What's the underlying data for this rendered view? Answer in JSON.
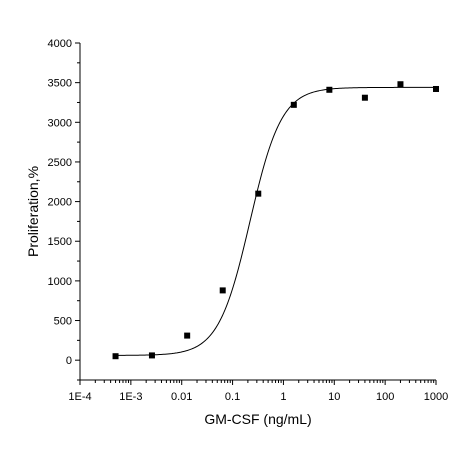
{
  "chart_data": {
    "type": "scatter",
    "title": "",
    "xlabel": "GM-CSF (ng/mL)",
    "ylabel": "Proliferation,%",
    "x_scale": "log",
    "xlim": [
      0.0001,
      1000
    ],
    "ylim": [
      -250,
      4000
    ],
    "x_tick_labels": [
      "1E-4",
      "1E-3",
      "0.01",
      "0.1",
      "1",
      "10",
      "100",
      "1000"
    ],
    "y_tick_labels": [
      "0",
      "500",
      "1000",
      "1500",
      "2000",
      "2500",
      "3000",
      "3500",
      "4000"
    ],
    "grid": false,
    "legend": "none",
    "series": [
      {
        "marker": "square",
        "x": [
          0.0005,
          0.0026,
          0.0128,
          0.064,
          0.32,
          1.6,
          8,
          40,
          200,
          1000
        ],
        "y": [
          50,
          60,
          310,
          880,
          2100,
          3220,
          3410,
          3310,
          3480,
          3420
        ]
      }
    ],
    "fit_curve": {
      "model": "4-parameter logistic",
      "bottom": 60,
      "top": 3440,
      "ec50": 0.22,
      "hill": 1.4
    }
  }
}
